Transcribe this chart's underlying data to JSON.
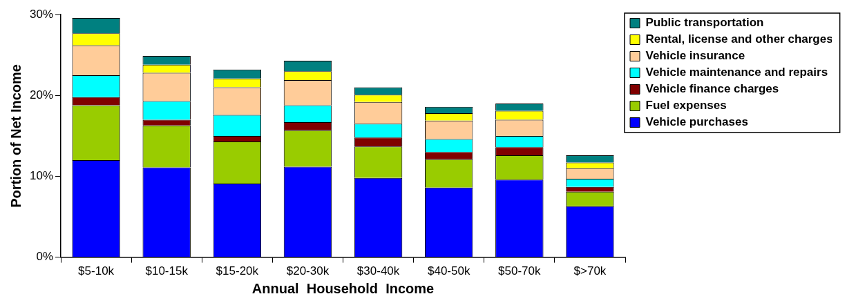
{
  "chart_data": {
    "type": "bar",
    "stacked": true,
    "xlabel": "Annual  Household  Income",
    "ylabel": "Portion of Net Income",
    "categories": [
      "$5-10k",
      "$10-15k",
      "$15-20k",
      "$20-30k",
      "$30-40k",
      "$40-50k",
      "$50-70k",
      "$>70k"
    ],
    "series": [
      {
        "name": "Vehicle purchases",
        "color": "#0000ff",
        "values": [
          12.0,
          11.1,
          9.1,
          11.2,
          9.8,
          8.6,
          9.6,
          6.3
        ]
      },
      {
        "name": "Fuel expenses",
        "color": "#99cc00",
        "values": [
          6.8,
          5.2,
          5.2,
          4.5,
          3.9,
          3.5,
          3.0,
          1.8
        ]
      },
      {
        "name": "Vehicle finance charges",
        "color": "#800000",
        "values": [
          1.0,
          0.7,
          0.7,
          1.0,
          1.1,
          0.9,
          1.0,
          0.6
        ]
      },
      {
        "name": "Vehicle maintenance and repairs",
        "color": "#00ffff",
        "values": [
          2.7,
          2.3,
          2.6,
          2.1,
          1.7,
          1.6,
          1.4,
          1.0
        ]
      },
      {
        "name": "Vehicle insurance",
        "color": "#ffcc99",
        "values": [
          3.7,
          3.5,
          3.4,
          3.1,
          2.7,
          2.3,
          2.0,
          1.3
        ]
      },
      {
        "name": "Rental, license and other charges",
        "color": "#ffff00",
        "values": [
          1.5,
          1.0,
          1.1,
          1.1,
          0.9,
          0.9,
          1.1,
          0.7
        ]
      },
      {
        "name": "Public transportation",
        "color": "#008080",
        "values": [
          1.9,
          1.1,
          1.1,
          1.3,
          0.9,
          0.8,
          0.9,
          0.9
        ]
      }
    ],
    "ylim": [
      0,
      30
    ],
    "yticks": [
      {
        "value": 0,
        "label": "0%"
      },
      {
        "value": 10,
        "label": "10%"
      },
      {
        "value": 20,
        "label": "20%"
      },
      {
        "value": 30,
        "label": "30%"
      }
    ],
    "grid": false,
    "legend": "top right"
  }
}
